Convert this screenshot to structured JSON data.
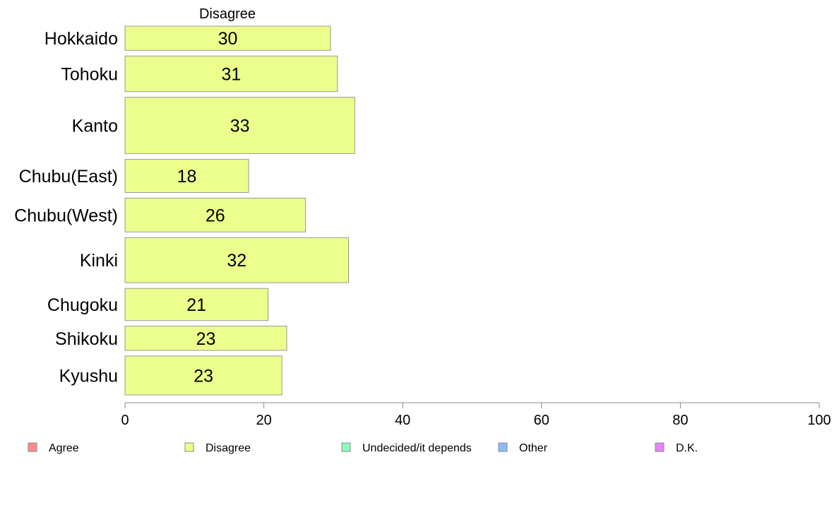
{
  "chart_data": {
    "type": "bar",
    "orientation": "horizontal",
    "panel_title": "Disagree",
    "categories": [
      "Hokkaido",
      "Tohoku",
      "Kanto",
      "Chubu(East)",
      "Chubu(West)",
      "Kinki",
      "Chugoku",
      "Shikoku",
      "Kyushu"
    ],
    "series": [
      {
        "name": "Disagree",
        "values": [
          30,
          31,
          33,
          18,
          26,
          32,
          21,
          23,
          23
        ],
        "color": "#ebff8c"
      }
    ],
    "plotted_values": [
      29.6,
      30.6,
      33.1,
      17.8,
      26.0,
      32.2,
      20.6,
      23.3,
      22.6
    ],
    "relative_bar_heights": [
      0.43,
      0.63,
      1.0,
      0.59,
      0.6,
      0.8,
      0.57,
      0.43,
      0.69
    ],
    "xlim": [
      0,
      100
    ],
    "xticks": [
      0,
      20,
      40,
      60,
      80,
      100
    ],
    "grid": false,
    "legend": {
      "position": "bottom",
      "entries": [
        {
          "label": "Agree",
          "color": "#ff8c8c"
        },
        {
          "label": "Disagree",
          "color": "#ebff8c"
        },
        {
          "label": "Undecided/it depends",
          "color": "#8cffbb"
        },
        {
          "label": "Other",
          "color": "#8cbaff"
        },
        {
          "label": "D.K.",
          "color": "#ea82ff"
        }
      ]
    }
  }
}
